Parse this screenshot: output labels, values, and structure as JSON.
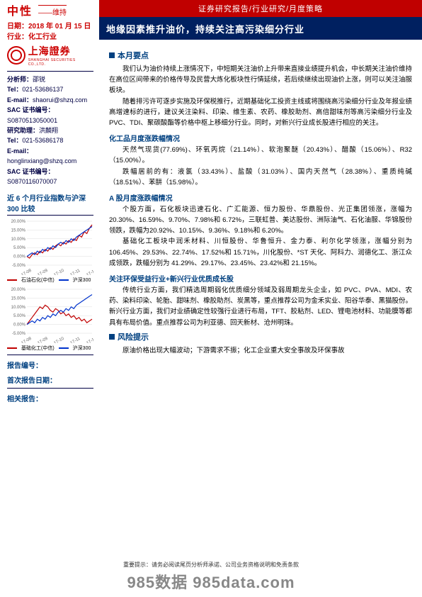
{
  "header": {
    "rating": "中性",
    "rating_sub": "——维持",
    "report_type": "证券研究报告/行业研究/月度策略",
    "date": "日期：2018 年 01 月 15 日",
    "industry": "行业：化工行业",
    "title": "地缘因素推升油价，持续关注高污染细分行业",
    "rating_color": "#c00000",
    "title_bg": "#002060"
  },
  "logo": {
    "name": "上海證券",
    "sub": "SHANGHAI SECURITIES CO.,LTD."
  },
  "analyst": {
    "analyst_label": "分析师：",
    "analyst_name": "邵锐",
    "tel_label": "Tel：",
    "tel": "021-53686137",
    "email_label": "E-mail：",
    "email": "shaorui@shzq.com",
    "sac_label": "SAC 证书编号：",
    "sac": "S0870513050001",
    "assist_label": "研究助理：",
    "assist_name": "洪麟翔",
    "tel2_label": "Tel：",
    "tel2": "021-53686178",
    "email2_label": "E-mail：",
    "email2": "honglinxiang@shzq.com",
    "sac2_label": "SAC 证书编号：",
    "sac2": "S0870116070007"
  },
  "chart_section_title": "近 6 个月行业指数与沪深 300 比较",
  "chart1": {
    "type": "line",
    "ylim": [
      -5,
      20
    ],
    "yticks": [
      "-5.00%",
      "0.00%",
      "5.00%",
      "10.00%",
      "15.00%",
      "20.00%"
    ],
    "xcats": [
      "17-08",
      "17-09",
      "17-10",
      "17-11",
      "17-12"
    ],
    "series": [
      {
        "name": "石油石化(中信)",
        "color": "#c00000",
        "values": [
          0,
          -1,
          1,
          2,
          1,
          3,
          2,
          4,
          3,
          5,
          4,
          6,
          7,
          6,
          8,
          7,
          9,
          8,
          10,
          9,
          12,
          11,
          14,
          13,
          16,
          18
        ]
      },
      {
        "name": "沪深300",
        "color": "#0033cc",
        "values": [
          0,
          1,
          2,
          1,
          3,
          2,
          4,
          3,
          5,
          4,
          6,
          5,
          7,
          8,
          7,
          9,
          8,
          10,
          9,
          11,
          12,
          13,
          14,
          15,
          16,
          17
        ]
      }
    ],
    "grid_color": "#dddddd",
    "bg": "#ffffff"
  },
  "chart2": {
    "type": "line",
    "ylim": [
      -5,
      20
    ],
    "yticks": [
      "-5.00%",
      "0.00%",
      "5.00%",
      "10.00%",
      "15.00%",
      "20.00%"
    ],
    "xcats": [
      "17-08",
      "17-09",
      "17-10",
      "17-11",
      "17-12"
    ],
    "series": [
      {
        "name": "基础化工(中信)",
        "color": "#c00000",
        "values": [
          0,
          2,
          4,
          6,
          8,
          10,
          9,
          11,
          10,
          8,
          7,
          9,
          8,
          6,
          7,
          5,
          6,
          4,
          5,
          3,
          4,
          2,
          3,
          1,
          2,
          3
        ]
      },
      {
        "name": "沪深300",
        "color": "#0033cc",
        "values": [
          0,
          1,
          2,
          1,
          3,
          2,
          4,
          3,
          5,
          4,
          6,
          5,
          7,
          8,
          7,
          9,
          8,
          10,
          9,
          11,
          12,
          13,
          14,
          15,
          16,
          17
        ]
      }
    ],
    "grid_color": "#dddddd",
    "bg": "#ffffff"
  },
  "report_meta": {
    "no_label": "报告编号：",
    "first_date_label": "首次报告日期：",
    "related_label": "相关报告："
  },
  "body": {
    "sec1_title": "本月要点",
    "p1": "我们认为油价持续上涨情况下，中短期关注油价上升带来直接业绩提升机会，中长期关注油价维持在高位区间带来的价格传导及民营大炼化板块性行情延续，若后续继续出现油价上涨，则可以关注油服板块。",
    "p2": "随着排污许可逐步实施及环保税推行，近期基础化工投资主线或将围绕高污染细分行业及年报业绩高增速标的进行，建议关注染料、印染、维生素、农药、橡胶助剂、高倍甜味剂等高污染细分行业及 PVC、TDI、聚碳酸酯等价格中枢上移细分行业。同时，对新兴行业成长股进行相应的关注。",
    "sub2": "化工品月度涨跌幅情况",
    "p3": "天然气现货(77.69%)、环氧丙烷（21.14%）、软泡聚醚（20.43%）、醋酸（15.06%）、R32（15.00%）。",
    "p4": "跌幅居前的有：液氯（33.43%）、盐酸（31.03%）、国内天然气（28.38%）、重质纯碱（18.51%）、苯肼（15.98%）。",
    "sub3": "A 股月度涨跌幅情况",
    "p5": "个股方面，石化板块迅速石化、广汇能源、恒力股份、华鼎股份、光正集团领涨，涨幅为 20.30%、16.59%、9.70%、7.98%和 6.72%，三联虹普、美达股份、洲际油气、石化油服、华锦股份领跌，跌幅为20.92%、10.15%、9.36%、9.18%和 6.20%。",
    "p6": "基础化工板块中润禾材料、川恒股份、华鲁恒升、金力泰、利尔化学领涨，涨幅分别为 106.45%、29.53%、22.74%、17.52%和 15.71%，川化股份、*ST 天化、阿科力、润德化工、浙江众成领跌，跌幅分别为 41.29%、29.17%、23.45%、23.42%和 21.15%。",
    "sub4": "关注环保受益行业+新兴行业优质成长股",
    "p7": "传统行业方面，我们精选周期弱化优质细分领域及弱周期龙头企业，如 PVC、PVA、MDI、农药、染料印染、轮胎、甜味剂、橡胶助剂、炭黑等，重点推荐公司为金禾实业、阳谷华泰、黑猫股份。新兴行业方面，我们对业绩确定性较强行业进行布局，TFT、胶粘剂、LED、锂电池材料、功能膜等都具有布局价值。重点推荐公司为利亚德、回天新材、沧州明珠。",
    "sec2_title": "风险提示",
    "p8": "原油价格出现大幅波动；下游需求不振；化工企业重大安全事故及环保事故"
  },
  "footer": {
    "disclaimer": "重要提示：请务必阅读尾页分析师承诺、公司业务资格说明和免责条款",
    "watermark": "985数据 985data.com"
  }
}
